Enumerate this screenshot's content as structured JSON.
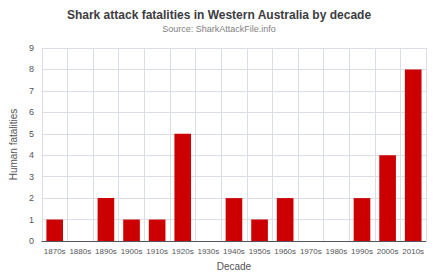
{
  "chart_data": {
    "type": "bar",
    "title": "Shark attack fatalities in Western Australia by decade",
    "subtitle": "Source: SharkAttackFile.info",
    "xlabel": "Decade",
    "ylabel": "Human fatalities",
    "categories": [
      "1870s",
      "1880s",
      "1890s",
      "1900s",
      "1910s",
      "1920s",
      "1930s",
      "1940s",
      "1950s",
      "1960s",
      "1970s",
      "1980s",
      "1990s",
      "2000s",
      "2010s"
    ],
    "values": [
      1,
      0,
      2,
      1,
      1,
      5,
      0,
      2,
      1,
      2,
      0,
      0,
      2,
      4,
      8
    ],
    "color": "#cc0000",
    "ylim": [
      0,
      9
    ],
    "yticks": [
      0,
      1,
      2,
      3,
      4,
      5,
      6,
      7,
      8,
      9
    ],
    "grid": true
  }
}
